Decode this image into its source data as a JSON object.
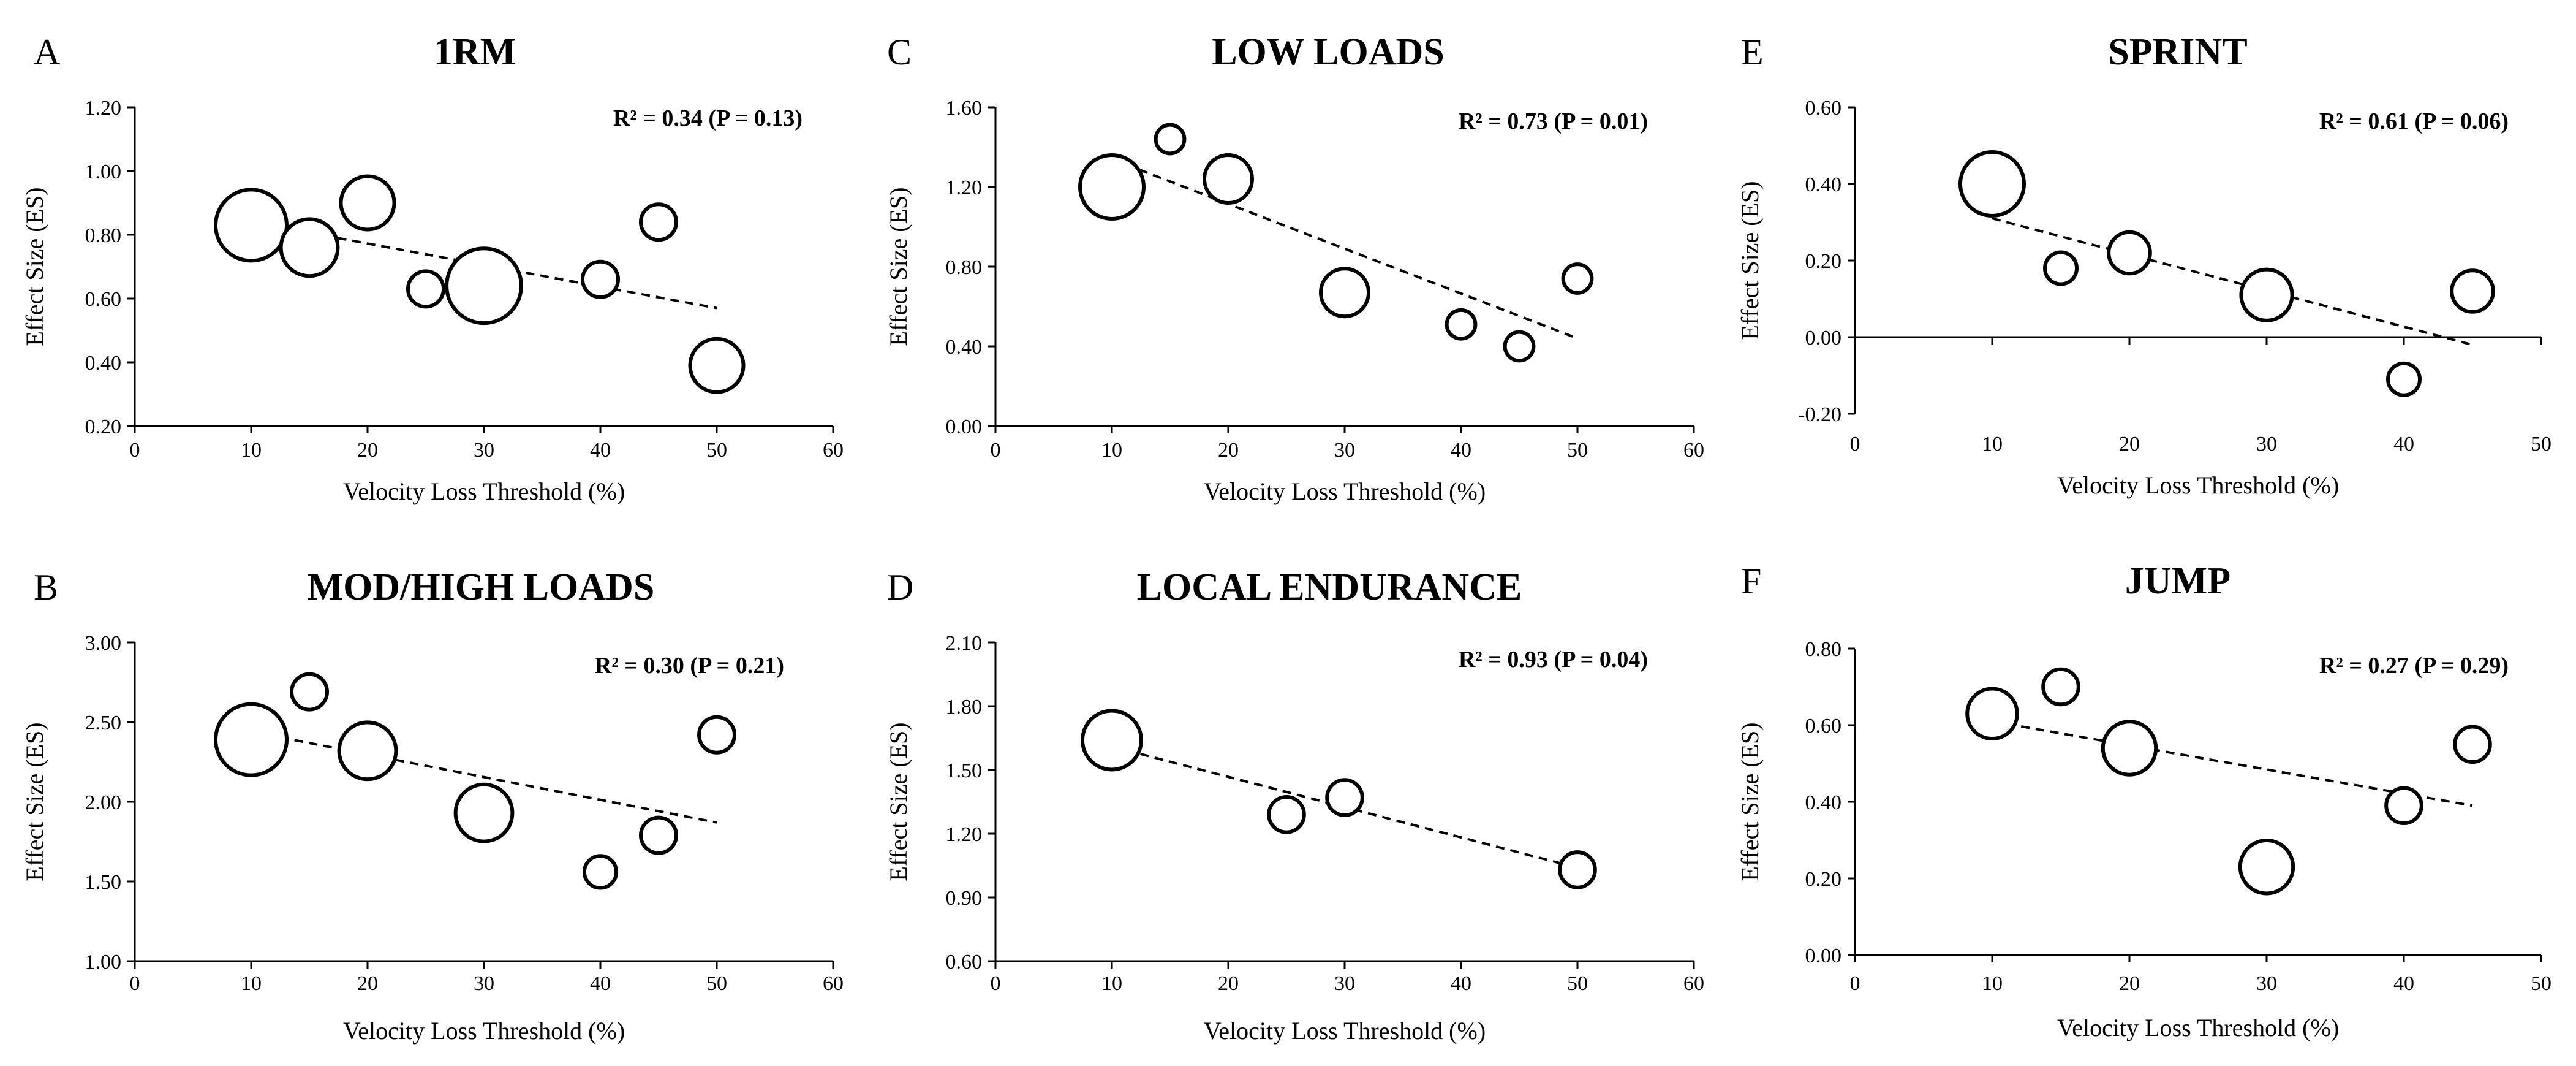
{
  "chart_data": [
    {
      "panel": "A",
      "title": "1RM",
      "type": "scatter",
      "stat_label": "R² = 0.34 (P = 0.13)",
      "xlabel": "Velocity Loss Threshold (%)",
      "ylabel": "Effect Size (ES)",
      "xlim": [
        0,
        60
      ],
      "ylim": [
        0.2,
        1.2
      ],
      "xticks": [
        0,
        10,
        20,
        30,
        40,
        50,
        60
      ],
      "yticks": [
        0.2,
        0.4,
        0.6,
        0.8,
        1.0,
        1.2
      ],
      "x_tick_labels": [
        "0",
        "10",
        "20",
        "30",
        "40",
        "50",
        "60"
      ],
      "y_tick_labels": [
        "0.20",
        "0.40",
        "0.60",
        "0.80",
        "1.00",
        "1.20"
      ],
      "points": [
        {
          "x": 10,
          "y": 0.83,
          "weight": 1.0
        },
        {
          "x": 15,
          "y": 0.76,
          "weight": 0.8
        },
        {
          "x": 20,
          "y": 0.9,
          "weight": 0.75
        },
        {
          "x": 25,
          "y": 0.63,
          "weight": 0.5
        },
        {
          "x": 30,
          "y": 0.64,
          "weight": 1.05
        },
        {
          "x": 40,
          "y": 0.66,
          "weight": 0.5
        },
        {
          "x": 45,
          "y": 0.84,
          "weight": 0.5
        },
        {
          "x": 50,
          "y": 0.39,
          "weight": 0.75
        }
      ],
      "trendline": {
        "x": [
          10,
          50
        ],
        "y": [
          0.84,
          0.57
        ]
      }
    },
    {
      "panel": "B",
      "title": "MOD/HIGH LOADS",
      "type": "scatter",
      "stat_label": "R² = 0.30 (P = 0.21)",
      "xlabel": "Velocity Loss Threshold (%)",
      "ylabel": "Effect Size (ES)",
      "xlim": [
        0,
        60
      ],
      "ylim": [
        1.0,
        3.0
      ],
      "xticks": [
        0,
        10,
        20,
        30,
        40,
        50,
        60
      ],
      "yticks": [
        1.0,
        1.5,
        2.0,
        2.5,
        3.0
      ],
      "x_tick_labels": [
        "0",
        "10",
        "20",
        "30",
        "40",
        "50",
        "60"
      ],
      "y_tick_labels": [
        "1.00",
        "1.50",
        "2.00",
        "2.50",
        "3.00"
      ],
      "points": [
        {
          "x": 10,
          "y": 2.39,
          "weight": 1.0
        },
        {
          "x": 15,
          "y": 2.69,
          "weight": 0.5
        },
        {
          "x": 20,
          "y": 2.32,
          "weight": 0.8
        },
        {
          "x": 30,
          "y": 1.93,
          "weight": 0.8
        },
        {
          "x": 40,
          "y": 1.56,
          "weight": 0.45
        },
        {
          "x": 45,
          "y": 1.79,
          "weight": 0.5
        },
        {
          "x": 50,
          "y": 2.42,
          "weight": 0.5
        }
      ],
      "trendline": {
        "x": [
          10,
          50
        ],
        "y": [
          2.44,
          1.87
        ]
      }
    },
    {
      "panel": "C",
      "title": "LOW LOADS",
      "type": "scatter",
      "stat_label": "R² = 0.73 (P = 0.01)",
      "xlabel": "Velocity Loss Threshold (%)",
      "ylabel": "Effect Size (ES)",
      "xlim": [
        0,
        60
      ],
      "ylim": [
        0.0,
        1.6
      ],
      "xticks": [
        0,
        10,
        20,
        30,
        40,
        50,
        60
      ],
      "yticks": [
        0.0,
        0.4,
        0.8,
        1.2,
        1.6
      ],
      "x_tick_labels": [
        "0",
        "10",
        "20",
        "30",
        "40",
        "50",
        "60"
      ],
      "y_tick_labels": [
        "0.00",
        "0.40",
        "0.80",
        "1.20",
        "1.60"
      ],
      "points": [
        {
          "x": 10,
          "y": 1.2,
          "weight": 1.0
        },
        {
          "x": 15,
          "y": 1.44,
          "weight": 0.45
        },
        {
          "x": 20,
          "y": 1.24,
          "weight": 0.75
        },
        {
          "x": 30,
          "y": 0.67,
          "weight": 0.75
        },
        {
          "x": 40,
          "y": 0.51,
          "weight": 0.45
        },
        {
          "x": 45,
          "y": 0.4,
          "weight": 0.45
        },
        {
          "x": 50,
          "y": 0.74,
          "weight": 0.45
        }
      ],
      "trendline": {
        "x": [
          10,
          50
        ],
        "y": [
          1.34,
          0.44
        ]
      }
    },
    {
      "panel": "D",
      "title": "LOCAL ENDURANCE",
      "type": "scatter",
      "stat_label": "R² = 0.93 (P = 0.04)",
      "xlabel": "Velocity Loss Threshold (%)",
      "ylabel": "Effect Size (ES)",
      "xlim": [
        0,
        60
      ],
      "ylim": [
        0.6,
        2.1
      ],
      "xticks": [
        0,
        10,
        20,
        30,
        40,
        50,
        60
      ],
      "yticks": [
        0.6,
        0.9,
        1.2,
        1.5,
        1.8,
        2.1
      ],
      "x_tick_labels": [
        "0",
        "10",
        "20",
        "30",
        "40",
        "50",
        "60"
      ],
      "y_tick_labels": [
        "0.60",
        "0.90",
        "1.20",
        "1.50",
        "1.80",
        "2.10"
      ],
      "points": [
        {
          "x": 10,
          "y": 1.64,
          "weight": 1.0
        },
        {
          "x": 25,
          "y": 1.29,
          "weight": 0.6
        },
        {
          "x": 30,
          "y": 1.37,
          "weight": 0.6
        },
        {
          "x": 50,
          "y": 1.03,
          "weight": 0.6
        }
      ],
      "trendline": {
        "x": [
          10,
          50
        ],
        "y": [
          1.61,
          1.04
        ]
      }
    },
    {
      "panel": "E",
      "title": "SPRINT",
      "type": "scatter",
      "stat_label": "R² = 0.61 (P = 0.06)",
      "xlabel": "Velocity Loss Threshold (%)",
      "ylabel": "Effect Size (ES)",
      "xlim": [
        0,
        50
      ],
      "ylim": [
        -0.2,
        0.6
      ],
      "xticks": [
        0,
        10,
        20,
        30,
        40,
        50
      ],
      "yticks": [
        -0.2,
        0.0,
        0.2,
        0.4,
        0.6
      ],
      "x_tick_labels": [
        "0",
        "10",
        "20",
        "30",
        "40",
        "50"
      ],
      "y_tick_labels": [
        "-0.20",
        "0.00",
        "0.20",
        "0.40",
        "0.60"
      ],
      "points": [
        {
          "x": 10,
          "y": 0.4,
          "weight": 1.0
        },
        {
          "x": 15,
          "y": 0.18,
          "weight": 0.5
        },
        {
          "x": 20,
          "y": 0.22,
          "weight": 0.65
        },
        {
          "x": 30,
          "y": 0.11,
          "weight": 0.8
        },
        {
          "x": 40,
          "y": -0.11,
          "weight": 0.5
        },
        {
          "x": 45,
          "y": 0.12,
          "weight": 0.65
        }
      ],
      "trendline": {
        "x": [
          10,
          45
        ],
        "y": [
          0.31,
          -0.02
        ]
      }
    },
    {
      "panel": "F",
      "title": "JUMP",
      "type": "scatter",
      "stat_label": "R² = 0.27 (P = 0.29)",
      "xlabel": "Velocity Loss Threshold (%)",
      "ylabel": "Effect Size (ES)",
      "xlim": [
        0,
        50
      ],
      "ylim": [
        0.0,
        0.8
      ],
      "xticks": [
        0,
        10,
        20,
        30,
        40,
        50
      ],
      "yticks": [
        0.0,
        0.2,
        0.4,
        0.6,
        0.8
      ],
      "x_tick_labels": [
        "0",
        "10",
        "20",
        "30",
        "40",
        "50"
      ],
      "y_tick_labels": [
        "0.00",
        "0.20",
        "0.40",
        "0.60",
        "0.80"
      ],
      "points": [
        {
          "x": 10,
          "y": 0.63,
          "weight": 0.85
        },
        {
          "x": 15,
          "y": 0.7,
          "weight": 0.6
        },
        {
          "x": 20,
          "y": 0.54,
          "weight": 0.9
        },
        {
          "x": 30,
          "y": 0.23,
          "weight": 0.9
        },
        {
          "x": 40,
          "y": 0.39,
          "weight": 0.6
        },
        {
          "x": 45,
          "y": 0.55,
          "weight": 0.6
        }
      ],
      "trendline": {
        "x": [
          10,
          45
        ],
        "y": [
          0.61,
          0.39
        ]
      }
    }
  ]
}
